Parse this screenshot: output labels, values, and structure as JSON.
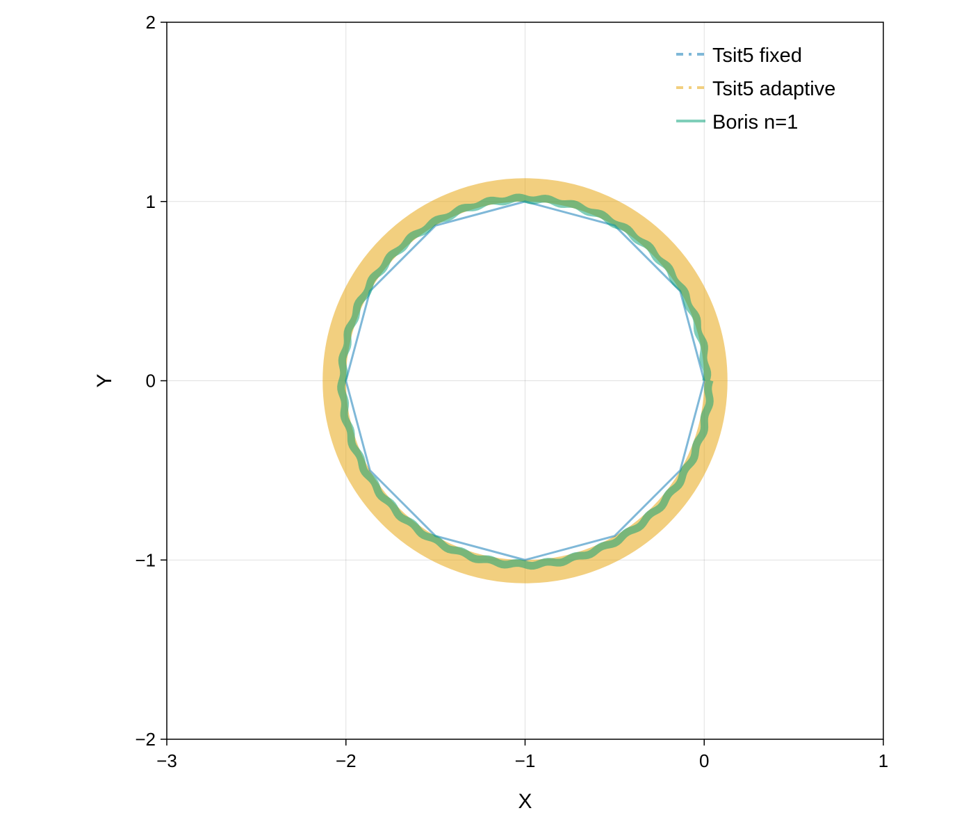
{
  "chart_data": {
    "type": "line",
    "title": "",
    "xlabel": "X",
    "ylabel": "Y",
    "xlim": [
      -3,
      1
    ],
    "ylim": [
      -2,
      2
    ],
    "xticks": [
      -3,
      -2,
      -1,
      0,
      1
    ],
    "yticks": [
      -2,
      -1,
      0,
      1,
      2
    ],
    "xtick_labels": [
      "−3",
      "−2",
      "−1",
      "0",
      "1"
    ],
    "ytick_labels": [
      "−2",
      "−1",
      "0",
      "1",
      "2"
    ],
    "grid": true,
    "legend_position": "top-right",
    "series": [
      {
        "name": "Tsit5 fixed",
        "color": "#0072B2",
        "alpha": 0.5,
        "legend_style": "dashdot",
        "x": [
          0,
          -0.134,
          -0.5,
          -1,
          -1.5,
          -1.866,
          -2,
          -1.866,
          -1.5,
          -1,
          -0.5,
          -0.134,
          0
        ],
        "y": [
          0,
          0.5,
          0.866,
          1,
          0.866,
          0.5,
          0,
          -0.5,
          -0.866,
          -1,
          -0.866,
          -0.5,
          0
        ]
      },
      {
        "name": "Tsit5 adaptive",
        "color": "#E69F00",
        "alpha": 0.5,
        "legend_style": "dashdot",
        "center": [
          -1,
          0
        ],
        "radius_range": [
          1.0,
          1.13
        ]
      },
      {
        "name": "Boris n=1",
        "color": "#009E73",
        "alpha": 0.5,
        "legend_style": "solid",
        "center": [
          -1,
          0
        ],
        "radius_range": [
          1.0,
          1.04
        ]
      }
    ]
  }
}
